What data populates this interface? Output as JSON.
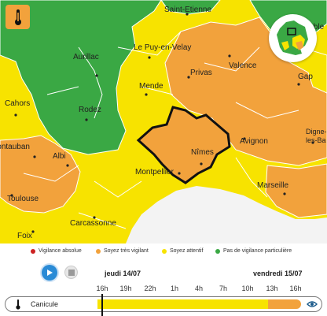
{
  "map": {
    "cities": [
      {
        "name": "Saint-Etienne"
      },
      {
        "name": "Aurillac"
      },
      {
        "name": "Le Puy-en-Velay"
      },
      {
        "name": "Valence"
      },
      {
        "name": "Grenoble"
      },
      {
        "name": "Gap"
      },
      {
        "name": "Privas"
      },
      {
        "name": "Mende"
      },
      {
        "name": "Cahors"
      },
      {
        "name": "Rodez"
      },
      {
        "name": "Digne-les-Bains"
      },
      {
        "name": "Nîmes"
      },
      {
        "name": "Avignon"
      },
      {
        "name": "Montauban"
      },
      {
        "name": "Albi"
      },
      {
        "name": "Montpellier"
      },
      {
        "name": "Marseille"
      },
      {
        "name": "Toulouse"
      },
      {
        "name": "Carcassonne"
      },
      {
        "name": "Foix"
      }
    ],
    "colors": {
      "red": "#cc2222",
      "orange": "#f2a23c",
      "yellow": "#f7e300",
      "green": "#3aa844",
      "sea": "#f3f3f3"
    }
  },
  "legend": {
    "items": [
      {
        "label": "Vigilance absolue",
        "color": "#cc2222"
      },
      {
        "label": "Soyez très vigilant",
        "color": "#f2a23c"
      },
      {
        "label": "Soyez attentif",
        "color": "#f7e300"
      },
      {
        "label": "Pas de vigilance particulière",
        "color": "#3aa844"
      }
    ]
  },
  "timeline": {
    "day1": "jeudi 14/07",
    "day2": "vendredi 15/07",
    "hours": [
      "16h",
      "19h",
      "22h",
      "1h",
      "4h",
      "7h",
      "10h",
      "13h",
      "16h"
    ],
    "track_name": "Canicule"
  }
}
